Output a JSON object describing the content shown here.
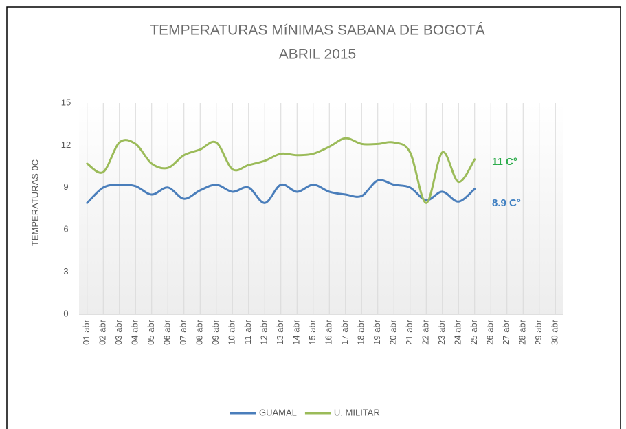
{
  "chart_data": {
    "type": "line",
    "title": [
      "TEMPERATURAS  MíNIMAS SABANA DE BOGOTÁ",
      "ABRIL  2015"
    ],
    "y_label": "TEMPERATURAS 0C",
    "categories": [
      "01 abr",
      "02 abr",
      "03 abr",
      "04 abr",
      "05 abr",
      "06 abr",
      "07 abr",
      "08 abr",
      "09 abr",
      "10 abr",
      "11 abr",
      "12 abr",
      "13 abr",
      "14 abr",
      "15 abr",
      "16 abr",
      "17 abr",
      "18 abr",
      "19 abr",
      "20 abr",
      "21 abr",
      "22 abr",
      "23 abr",
      "24 abr",
      "25 abr",
      "26 abr",
      "27 abr",
      "28 abr",
      "29 abr",
      "30 abr"
    ],
    "series": [
      {
        "name": "GUAMAL",
        "color": "#4a7ebb",
        "values": [
          7.9,
          9.0,
          9.2,
          9.1,
          8.5,
          9.0,
          8.2,
          8.8,
          9.2,
          8.7,
          9.0,
          7.9,
          9.2,
          8.7,
          9.2,
          8.7,
          8.5,
          8.4,
          9.5,
          9.2,
          9.0,
          8.1,
          8.7,
          8.0,
          8.9,
          null,
          null,
          null,
          null,
          null
        ]
      },
      {
        "name": "U. MILITAR",
        "color": "#9bbb59",
        "values": [
          10.7,
          10.1,
          12.2,
          12.1,
          10.7,
          10.4,
          11.3,
          11.7,
          12.2,
          10.3,
          10.6,
          10.9,
          11.4,
          11.3,
          11.4,
          11.9,
          12.5,
          12.1,
          12.1,
          12.2,
          11.5,
          7.9,
          11.5,
          9.4,
          11,
          null,
          null,
          null,
          null,
          null
        ]
      }
    ],
    "annotations": [
      {
        "text": "11  C°",
        "color": "#2bab4a"
      },
      {
        "text": "8.9 C°",
        "color": "#3f7fc1"
      }
    ],
    "ylim": [
      0,
      15
    ],
    "yticks": [
      0,
      3,
      6,
      9,
      12,
      15
    ],
    "legend": "bottom"
  }
}
